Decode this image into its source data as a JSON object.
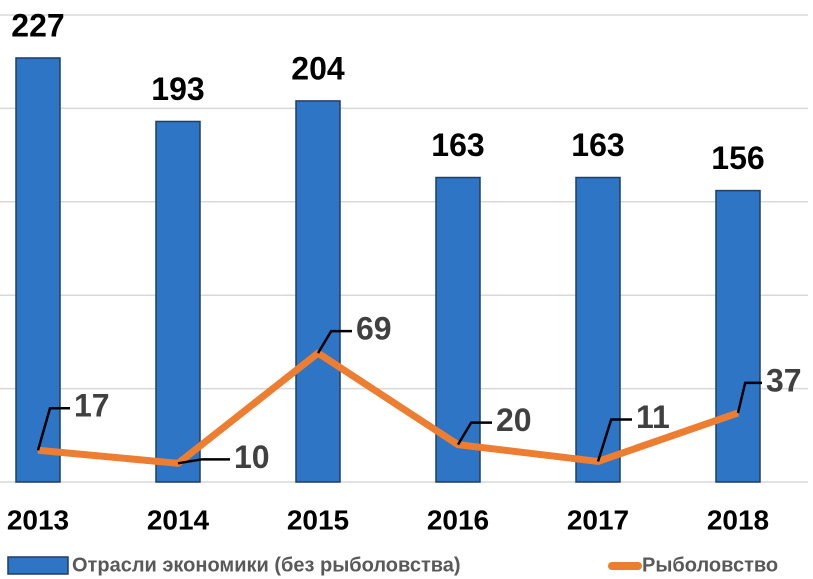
{
  "chart_data": {
    "type": "bar",
    "categories": [
      "2013",
      "2014",
      "2015",
      "2016",
      "2017",
      "2018"
    ],
    "series": [
      {
        "name": "Отрасли экономики (без рыболовства)",
        "color": "#2e75c6",
        "type": "bar",
        "values": [
          227,
          193,
          204,
          163,
          163,
          156
        ]
      },
      {
        "name": "Рыболовство",
        "color": "#ed7d31",
        "type": "line",
        "values": [
          17,
          10,
          69,
          20,
          11,
          37
        ]
      }
    ],
    "ylim": [
      0,
      250
    ],
    "yticks": [
      0,
      50,
      100,
      150,
      200,
      250
    ],
    "grid": true
  }
}
